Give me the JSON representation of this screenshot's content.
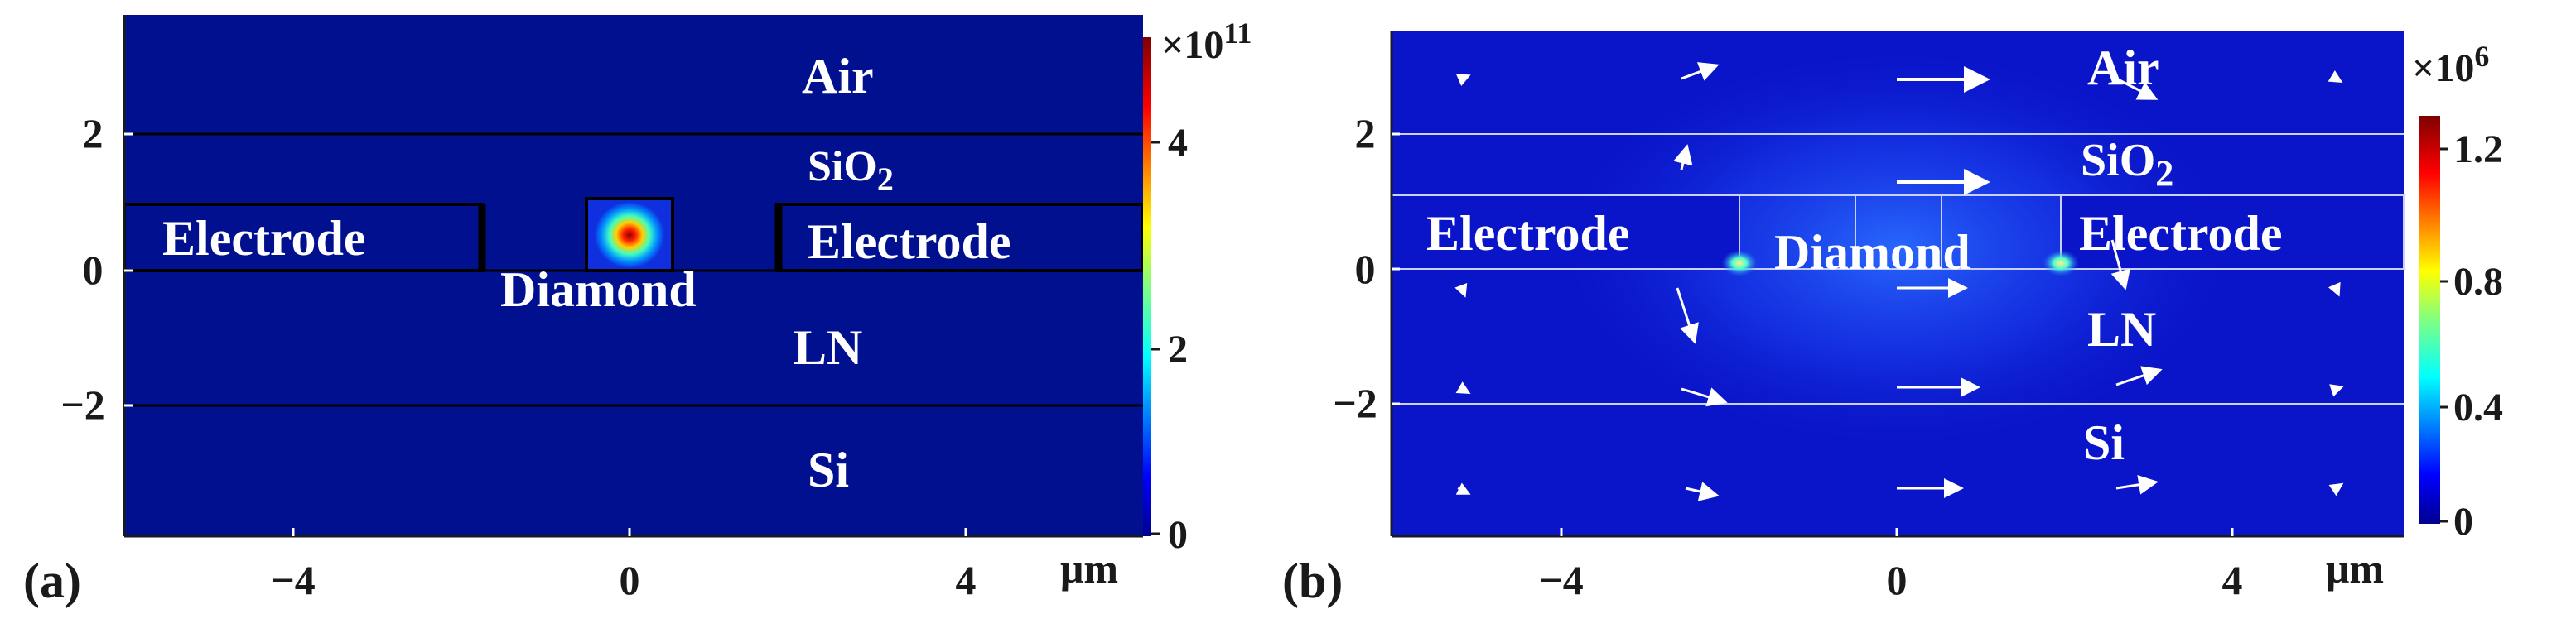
{
  "figure": {
    "panels": [
      {
        "id": "a",
        "panel_label": "(a)",
        "x_ticks": [
          "−4",
          "0",
          "4"
        ],
        "x_unit": "μm",
        "y_ticks": [
          "2",
          "0",
          "−2"
        ],
        "labels": {
          "air": "Air",
          "sio2_main": "SiO",
          "sio2_sub": "2",
          "electrode_left": "Electrode",
          "electrode_right": "Electrode",
          "diamond": "Diamond",
          "ln": "LN",
          "si": "Si"
        },
        "colorbar": {
          "exponent_base": "×10",
          "exponent_power": "11",
          "ticks": [
            "4",
            "2",
            "0"
          ]
        },
        "background_color": "#00108f"
      },
      {
        "id": "b",
        "panel_label": "(b)",
        "x_ticks": [
          "−4",
          "0",
          "4"
        ],
        "x_unit": "μm",
        "y_ticks": [
          "2",
          "0",
          "−2"
        ],
        "labels": {
          "air": "Air",
          "sio2_main": "SiO",
          "sio2_sub": "2",
          "electrode_left": "Electrode",
          "electrode_right": "Electrode",
          "diamond": "Diamond",
          "ln": "LN",
          "si": "Si"
        },
        "colorbar": {
          "exponent_base": "×10",
          "exponent_power": "6",
          "ticks": [
            "1.2",
            "0.8",
            "0.4",
            "0"
          ]
        },
        "background_color": "#0a14c8"
      }
    ]
  }
}
